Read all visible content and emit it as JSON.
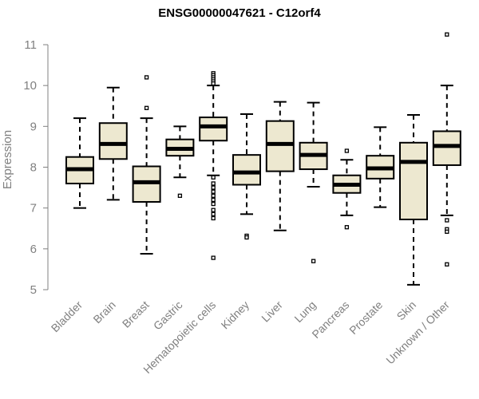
{
  "chart_data": {
    "type": "boxplot",
    "title": "ENSG00000047621 - C12orf4",
    "xlabel": "",
    "ylabel": "Expression",
    "ylim": [
      5,
      11
    ],
    "yticks": [
      5,
      6,
      7,
      8,
      9,
      10,
      11
    ],
    "grid": false,
    "legend": "none",
    "box_fill": "#ede8d0",
    "box_stroke": "#000000",
    "categories": [
      "Bladder",
      "Brain",
      "Breast",
      "Gastric",
      "Hematopoietic cells",
      "Kidney",
      "Liver",
      "Lung",
      "Pancreas",
      "Prostate",
      "Skin",
      "Unknown / Other"
    ],
    "boxes": [
      {
        "min": 7.0,
        "q1": 7.6,
        "median": 7.95,
        "q3": 8.25,
        "max": 9.2,
        "outliers": []
      },
      {
        "min": 7.2,
        "q1": 8.2,
        "median": 8.57,
        "q3": 9.08,
        "max": 9.95,
        "outliers": []
      },
      {
        "min": 5.88,
        "q1": 7.15,
        "median": 7.63,
        "q3": 8.02,
        "max": 9.2,
        "outliers": [
          10.2,
          9.45
        ]
      },
      {
        "min": 7.75,
        "q1": 8.28,
        "median": 8.45,
        "q3": 8.68,
        "max": 9.0,
        "outliers": [
          7.3
        ]
      },
      {
        "min": 7.8,
        "q1": 8.65,
        "median": 9.0,
        "q3": 9.22,
        "max": 10.0,
        "outliers": [
          10.3,
          10.25,
          10.2,
          10.15,
          10.1,
          10.05,
          7.75,
          7.6,
          7.5,
          7.4,
          7.3,
          7.2,
          7.1,
          6.95,
          6.85,
          6.75,
          5.78
        ]
      },
      {
        "min": 6.85,
        "q1": 7.57,
        "median": 7.87,
        "q3": 8.3,
        "max": 9.3,
        "outliers": [
          6.32,
          6.28
        ]
      },
      {
        "min": 6.45,
        "q1": 7.9,
        "median": 8.57,
        "q3": 9.13,
        "max": 9.6,
        "outliers": []
      },
      {
        "min": 7.52,
        "q1": 7.95,
        "median": 8.3,
        "q3": 8.6,
        "max": 9.58,
        "outliers": [
          5.7
        ]
      },
      {
        "min": 6.82,
        "q1": 7.37,
        "median": 7.57,
        "q3": 7.8,
        "max": 8.18,
        "outliers": [
          8.4,
          6.53
        ]
      },
      {
        "min": 7.02,
        "q1": 7.72,
        "median": 7.97,
        "q3": 8.28,
        "max": 8.98,
        "outliers": []
      },
      {
        "min": 5.12,
        "q1": 6.72,
        "median": 8.13,
        "q3": 8.6,
        "max": 9.28,
        "outliers": []
      },
      {
        "min": 6.82,
        "q1": 8.05,
        "median": 8.52,
        "q3": 8.88,
        "max": 10.0,
        "outliers": [
          11.25,
          6.7,
          6.48,
          6.42,
          5.62
        ]
      }
    ]
  }
}
